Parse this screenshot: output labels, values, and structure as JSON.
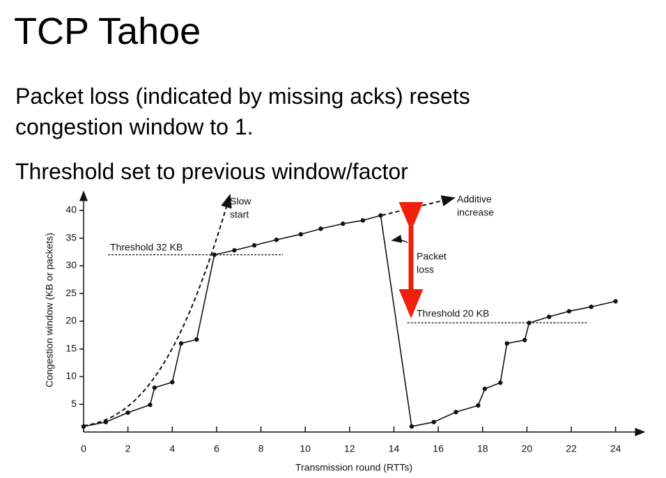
{
  "title": "TCP Tahoe",
  "bullets": [
    "Packet loss (indicated by missing acks) resets congestion window to 1.",
    "Threshold set to previous window/factor"
  ],
  "chart_data": {
    "type": "line",
    "xlabel": "Transmission round (RTTs)",
    "ylabel": "Congestion window  (KB or packets)",
    "x": [
      0,
      1,
      2,
      3,
      3.2,
      4,
      4.4,
      5.1,
      5.9,
      6.8,
      7.7,
      8.7,
      9.8,
      10.7,
      11.7,
      12.6,
      13.4,
      14.8,
      15.8,
      16.8,
      17.8,
      18.1,
      18.8,
      19.1,
      19.9,
      20.1,
      21,
      21.9,
      22.9,
      24
    ],
    "series": [
      {
        "color": "#111111",
        "values": [
          1,
          1.8,
          3.5,
          4.9,
          8,
          9,
          16,
          16.7,
          32,
          32.8,
          33.7,
          34.7,
          35.7,
          36.7,
          37.6,
          38.2,
          39.1,
          1,
          1.8,
          3.6,
          4.8,
          7.8,
          8.9,
          16,
          16.6,
          19.7,
          20.8,
          21.8,
          22.6,
          23.6
        ]
      }
    ],
    "thresholds": [
      {
        "label": "Threshold 32 KB",
        "value": 32,
        "from": 1.1,
        "to": 9
      },
      {
        "label": "Threshold 20 KB",
        "value": 19.7,
        "from": 14.6,
        "to": 22.7
      }
    ],
    "annotations": [
      {
        "lines": [
          "Slow",
          "start"
        ]
      },
      {
        "lines": [
          "Additive",
          "increase"
        ]
      },
      {
        "lines": [
          "Packet",
          "loss"
        ]
      }
    ],
    "xlim": [
      0,
      25.3
    ],
    "xticks": [
      0,
      2,
      4,
      6,
      8,
      10,
      12,
      14,
      16,
      18,
      20,
      22,
      24
    ],
    "ylim": [
      0,
      43.4
    ],
    "yticks": [
      5,
      10,
      15,
      20,
      25,
      30,
      35,
      40
    ]
  }
}
